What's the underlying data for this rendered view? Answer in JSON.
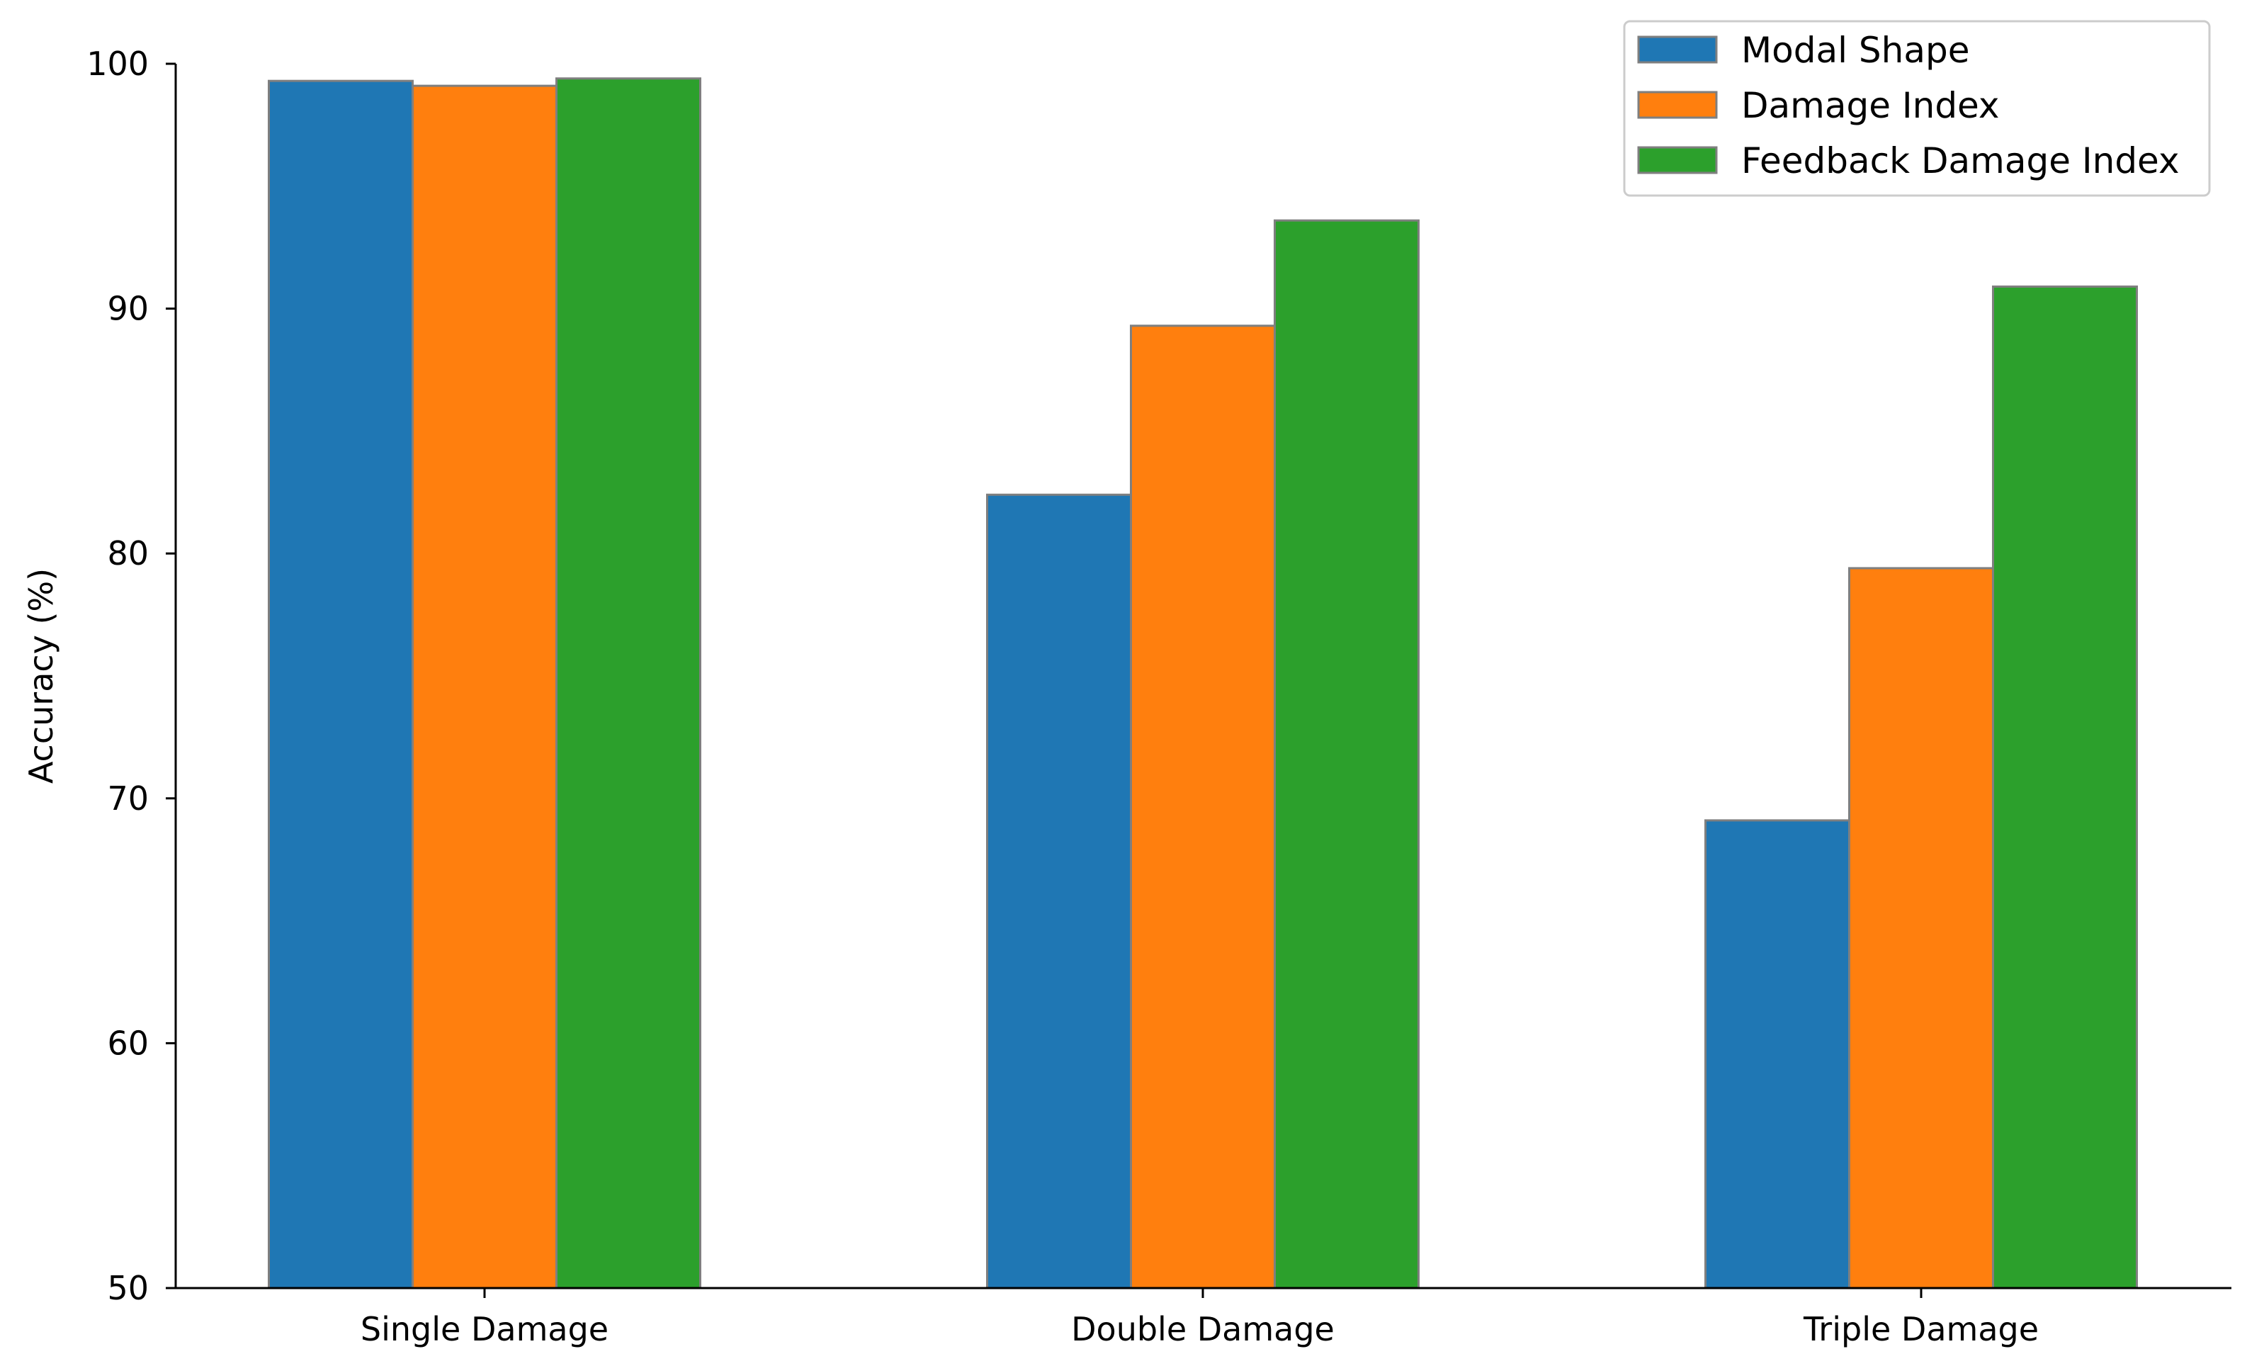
{
  "chart_data": {
    "type": "bar",
    "categories": [
      "Single Damage",
      "Double Damage",
      "Triple Damage"
    ],
    "series": [
      {
        "name": "Modal Shape",
        "color": "#1f77b4",
        "values": [
          99.3,
          82.4,
          69.1
        ]
      },
      {
        "name": "Damage Index",
        "color": "#ff7f0e",
        "values": [
          99.1,
          89.3,
          79.4
        ]
      },
      {
        "name": "Feedback Damage Index",
        "color": "#2ca02c",
        "values": [
          99.4,
          93.6,
          90.9
        ]
      }
    ],
    "xlabel": "",
    "ylabel": "Accuracy (%)",
    "ylim": [
      50,
      100
    ],
    "yticks": [
      50,
      60,
      70,
      80,
      90,
      100
    ],
    "grid": false,
    "legend": "top-right"
  }
}
